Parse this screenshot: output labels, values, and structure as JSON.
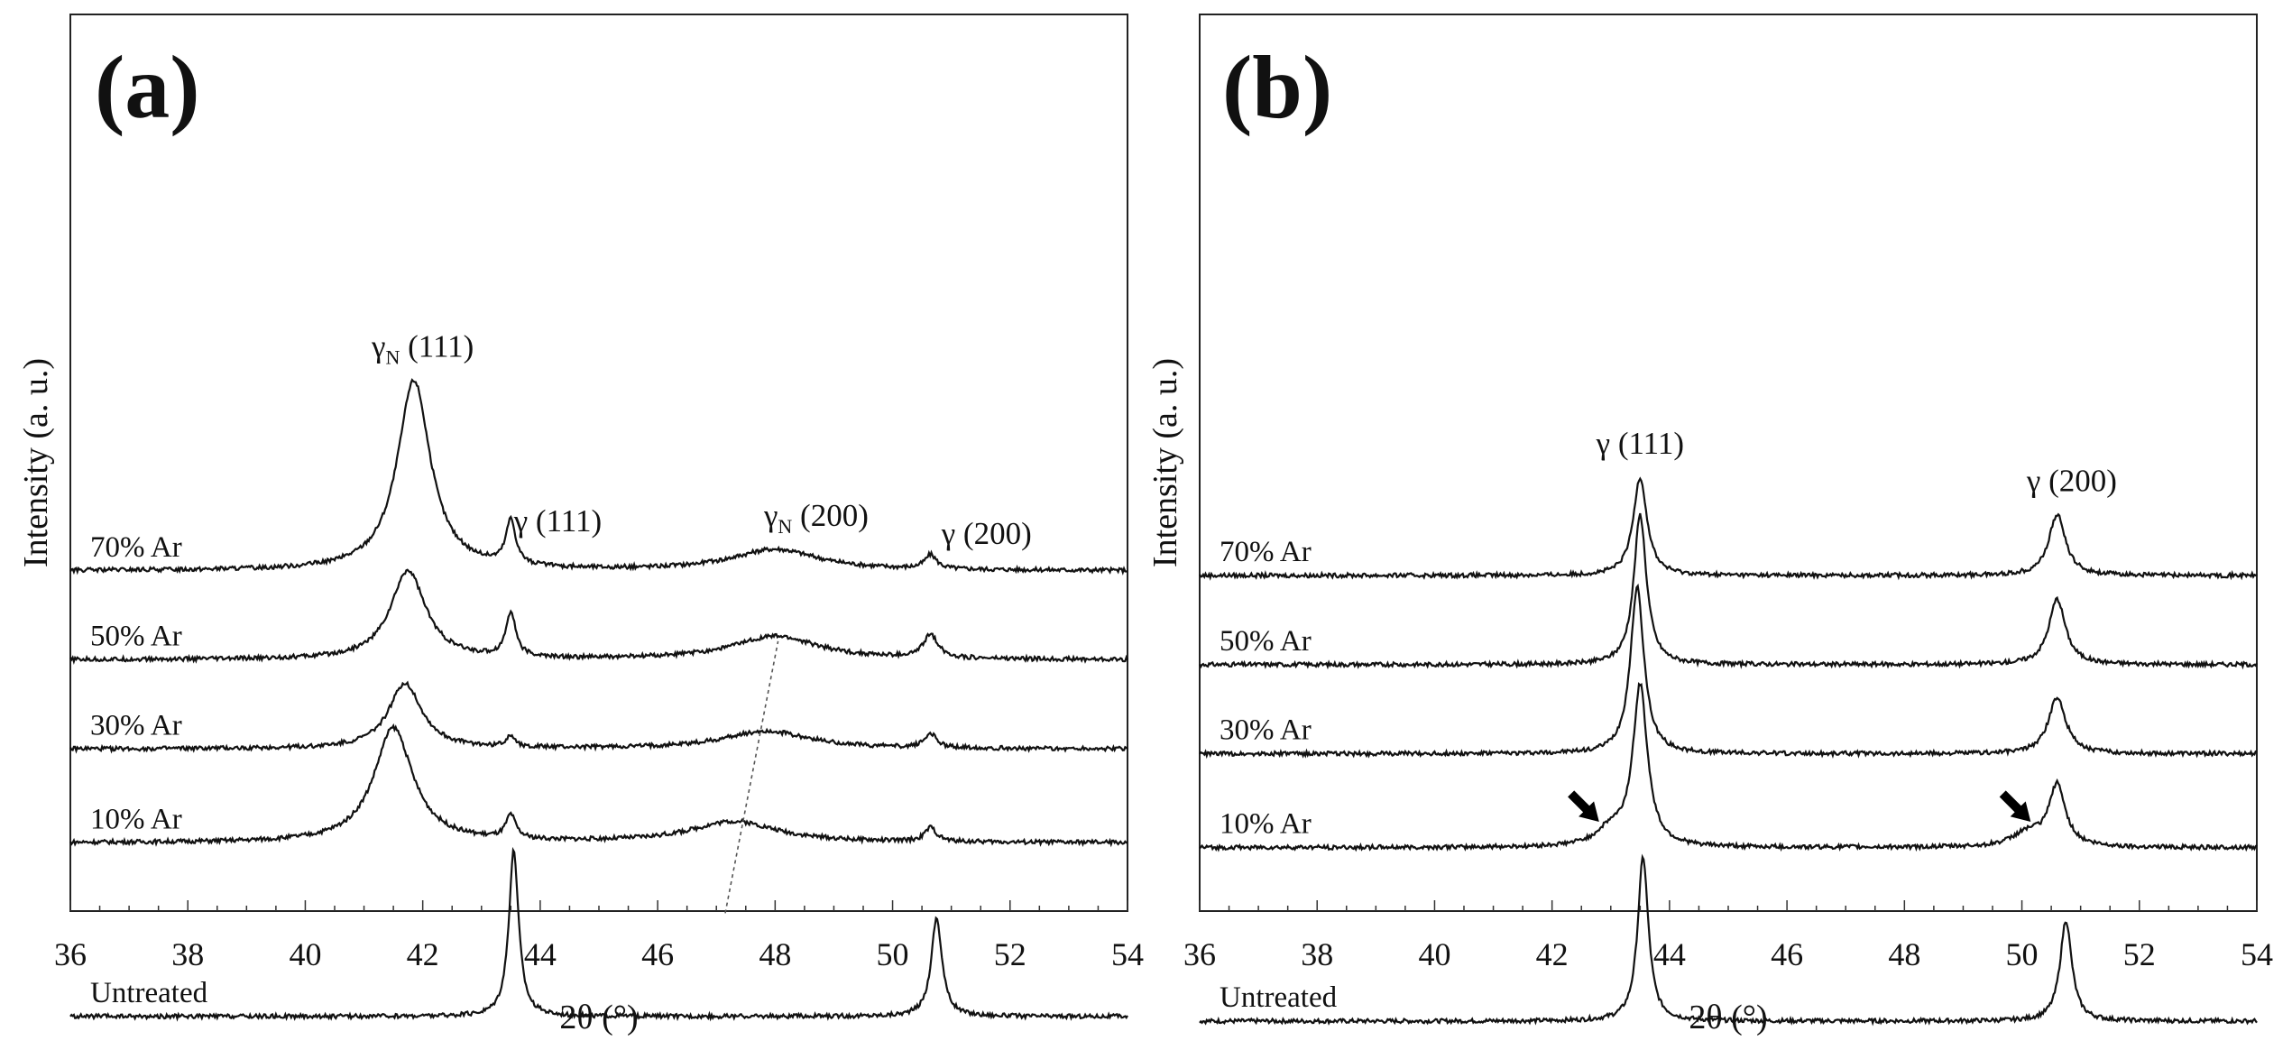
{
  "chart_data": [
    {
      "type": "line",
      "panel": "(a)",
      "xlabel": "2θ (°)",
      "ylabel": "Intensity (a. u.)",
      "xlim": [
        36,
        54
      ],
      "xticks": [
        36,
        38,
        40,
        42,
        44,
        46,
        48,
        50,
        52,
        54
      ],
      "y_units": "arbitrary (stacked, offset traces)",
      "series": [
        {
          "name": "70% Ar",
          "baseline": 7.1,
          "peaks": [
            {
              "center": 41.85,
              "height": 4.05,
              "width": 0.34
            },
            {
              "center": 43.5,
              "height": 0.95,
              "width": 0.1
            },
            {
              "center": 48.0,
              "height": 0.45,
              "width": 0.9
            },
            {
              "center": 50.65,
              "height": 0.3,
              "width": 0.12
            }
          ]
        },
        {
          "name": "50% Ar",
          "baseline": 5.2,
          "peaks": [
            {
              "center": 41.75,
              "height": 1.9,
              "width": 0.36
            },
            {
              "center": 43.5,
              "height": 0.95,
              "width": 0.1
            },
            {
              "center": 48.0,
              "height": 0.5,
              "width": 0.9
            },
            {
              "center": 50.65,
              "height": 0.5,
              "width": 0.15
            }
          ]
        },
        {
          "name": "30% Ar",
          "baseline": 3.3,
          "peaks": [
            {
              "center": 41.7,
              "height": 1.4,
              "width": 0.34
            },
            {
              "center": 43.5,
              "height": 0.25,
              "width": 0.09
            },
            {
              "center": 47.85,
              "height": 0.38,
              "width": 0.9
            },
            {
              "center": 50.65,
              "height": 0.3,
              "width": 0.12
            }
          ]
        },
        {
          "name": "10% Ar",
          "baseline": 1.3,
          "peaks": [
            {
              "center": 41.5,
              "height": 2.45,
              "width": 0.4
            },
            {
              "center": 43.5,
              "height": 0.5,
              "width": 0.1
            },
            {
              "center": 47.3,
              "height": 0.45,
              "width": 0.9
            },
            {
              "center": 50.65,
              "height": 0.3,
              "width": 0.12
            }
          ]
        },
        {
          "name": "Untreated",
          "baseline": -2.4,
          "peaks": [
            {
              "center": 43.55,
              "height": 3.55,
              "width": 0.1
            },
            {
              "center": 50.75,
              "height": 2.1,
              "width": 0.11
            }
          ]
        }
      ],
      "annotations": [
        {
          "text": "γ",
          "sub": "N",
          "rest": " (111)",
          "x": 42.0
        },
        {
          "text": "γ",
          "sub": "",
          "rest": " (111)",
          "x": 44.3
        },
        {
          "text": "γ",
          "sub": "N",
          "rest": " (200)",
          "x": 48.7
        },
        {
          "text": "γ",
          "sub": "",
          "rest": " (200)",
          "x": 51.6
        }
      ],
      "guide_line": {
        "from": [
          47.15,
          -0.2
        ],
        "to": [
          48.05,
          5.6
        ],
        "style": "dashed"
      }
    },
    {
      "type": "line",
      "panel": "(b)",
      "xlabel": "2θ (°)",
      "ylabel": "Intensity (a. u.)",
      "xlim": [
        36,
        54
      ],
      "xticks": [
        36,
        38,
        40,
        42,
        44,
        46,
        48,
        50,
        52,
        54
      ],
      "y_units": "arbitrary (stacked, offset traces)",
      "series": [
        {
          "name": "70% Ar",
          "baseline": 7.0,
          "peaks": [
            {
              "center": 43.5,
              "height": 2.1,
              "width": 0.14
            },
            {
              "center": 50.6,
              "height": 1.3,
              "width": 0.17
            }
          ]
        },
        {
          "name": "50% Ar",
          "baseline": 5.1,
          "peaks": [
            {
              "center": 43.5,
              "height": 3.2,
              "width": 0.13
            },
            {
              "center": 50.6,
              "height": 1.4,
              "width": 0.17
            }
          ]
        },
        {
          "name": "30% Ar",
          "baseline": 3.2,
          "peaks": [
            {
              "center": 43.45,
              "height": 3.55,
              "width": 0.14
            },
            {
              "center": 50.6,
              "height": 1.2,
              "width": 0.18
            }
          ]
        },
        {
          "name": "10% Ar",
          "baseline": 1.2,
          "peaks": [
            {
              "center": 43.5,
              "height": 3.4,
              "width": 0.15
            },
            {
              "center": 43.0,
              "height": 0.35,
              "width": 0.3
            },
            {
              "center": 50.6,
              "height": 1.3,
              "width": 0.17
            },
            {
              "center": 50.1,
              "height": 0.3,
              "width": 0.3
            }
          ]
        },
        {
          "name": "Untreated",
          "baseline": -2.5,
          "peaks": [
            {
              "center": 43.55,
              "height": 3.5,
              "width": 0.11
            },
            {
              "center": 50.75,
              "height": 2.15,
              "width": 0.12
            }
          ]
        }
      ],
      "annotations": [
        {
          "text": "γ",
          "sub": "",
          "rest": " (111)",
          "x": 43.5
        },
        {
          "text": "γ",
          "sub": "",
          "rest": " (200)",
          "x": 50.85
        }
      ],
      "arrows": [
        {
          "tip": [
            42.8,
            1.75
          ],
          "direction": "down-right"
        },
        {
          "tip": [
            50.15,
            1.75
          ],
          "direction": "down-right"
        }
      ]
    }
  ]
}
